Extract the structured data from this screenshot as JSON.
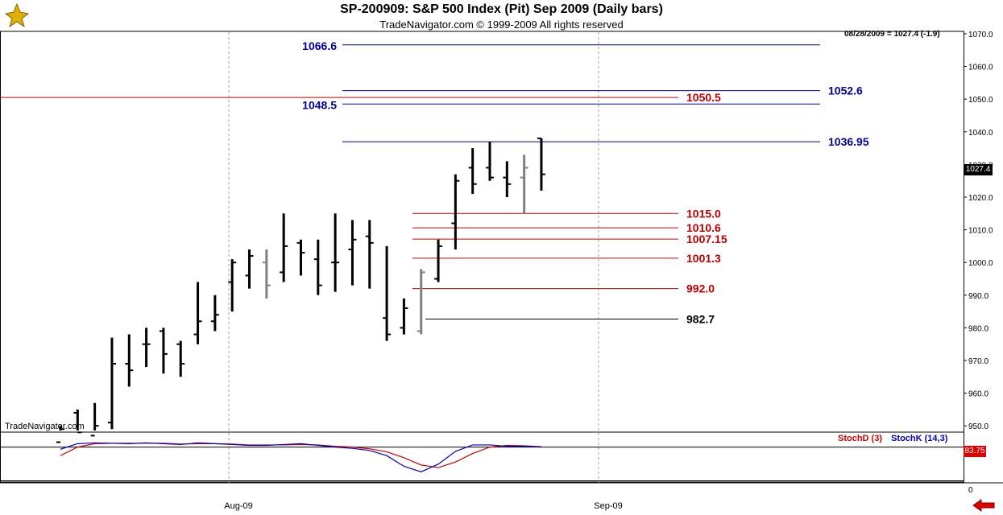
{
  "header": {
    "title": "SP-200909:  S&P 500 Index (Pit) Sep 2009  (Daily bars)",
    "subtitle": "TradeNavigator.com © 1999-2009 All rights reserved",
    "readout": "08/28/2009 = 1027.4 (-1.9)",
    "watermark": "TradeNavigator.com"
  },
  "colors": {
    "up_bar": "#00dd00",
    "normal_bar": "#000000",
    "gray_bar": "#808080",
    "blue_level": "#0000a0",
    "red_level": "#c00000",
    "stoch_d": "#d00000",
    "stoch_k": "#0000c0"
  },
  "chart_data": {
    "type": "bar",
    "title": "SP-200909:  S&P 500 Index (Pit) Sep 2009  (Daily bars)",
    "ylim": [
      945,
      1072
    ],
    "yticks": [
      "1070.0",
      "1060.0",
      "1050.0",
      "1040.0",
      "1030.0",
      "1020.0",
      "1010.0",
      "1000.0",
      "990.0",
      "980.0",
      "970.0",
      "960.0",
      "950.0"
    ],
    "xticks": [
      "Aug-09",
      "Sep-09"
    ],
    "last_price": "1027.4",
    "ohlc": [
      {
        "h": 950,
        "l": 944,
        "o": 945,
        "c": 949,
        "col": "n"
      },
      {
        "h": 955,
        "l": 944,
        "o": 954,
        "c": 948,
        "col": "n"
      },
      {
        "h": 957,
        "l": 946,
        "o": 947,
        "c": 950,
        "col": "n"
      },
      {
        "h": 977,
        "l": 949,
        "o": 951,
        "c": 969,
        "col": "n"
      },
      {
        "h": 978,
        "l": 962,
        "o": 969,
        "c": 967,
        "col": "n"
      },
      {
        "h": 980,
        "l": 968,
        "o": 975,
        "c": 975,
        "col": "n"
      },
      {
        "h": 980,
        "l": 966,
        "o": 979,
        "c": 972,
        "col": "n"
      },
      {
        "h": 976,
        "l": 965,
        "o": 975,
        "c": 969,
        "col": "n"
      },
      {
        "h": 994,
        "l": 975,
        "o": 978,
        "c": 982,
        "col": "n"
      },
      {
        "h": 990,
        "l": 979,
        "o": 982,
        "c": 984,
        "col": "n"
      },
      {
        "h": 1001,
        "l": 985,
        "o": 994,
        "c": 1000,
        "col": "n"
      },
      {
        "h": 1004,
        "l": 992,
        "o": 996,
        "c": 1002,
        "col": "n"
      },
      {
        "h": 1004,
        "l": 989,
        "o": 1000,
        "c": 993,
        "col": "g"
      },
      {
        "h": 1015,
        "l": 994,
        "o": 997,
        "c": 1005,
        "col": "n"
      },
      {
        "h": 1007,
        "l": 996,
        "o": 1006,
        "c": 1003,
        "col": "n"
      },
      {
        "h": 1007,
        "l": 990,
        "o": 1001,
        "c": 993,
        "col": "n"
      },
      {
        "h": 1015,
        "l": 991,
        "o": 1000,
        "c": 1000,
        "col": "n"
      },
      {
        "h": 1013,
        "l": 993,
        "o": 1004,
        "c": 1007,
        "col": "n"
      },
      {
        "h": 1013,
        "l": 992,
        "o": 1008,
        "c": 1006,
        "col": "n"
      },
      {
        "h": 1005,
        "l": 976,
        "o": 983,
        "c": 978,
        "col": "n"
      },
      {
        "h": 989,
        "l": 978,
        "o": 980,
        "c": 986,
        "col": "n"
      },
      {
        "h": 998,
        "l": 978,
        "o": 979,
        "c": 997,
        "col": "g"
      },
      {
        "h": 1007,
        "l": 994,
        "o": 995,
        "c": 1005,
        "col": "n"
      },
      {
        "h": 1027,
        "l": 1004,
        "o": 1012,
        "c": 1025,
        "col": "n"
      },
      {
        "h": 1035,
        "l": 1021,
        "o": 1029,
        "c": 1024,
        "col": "n"
      },
      {
        "h": 1037,
        "l": 1025,
        "o": 1029,
        "c": 1026,
        "col": "n"
      },
      {
        "h": 1031,
        "l": 1020,
        "o": 1026,
        "c": 1024,
        "col": "n"
      },
      {
        "h": 1033,
        "l": 1015,
        "o": 1026,
        "c": 1029,
        "col": "g"
      },
      {
        "h": 1038,
        "l": 1022,
        "o": 1038,
        "c": 1027,
        "col": "n"
      }
    ],
    "levels": [
      {
        "value": 1066.6,
        "label": "1066.6",
        "color": "blue",
        "side": "left",
        "span": "right"
      },
      {
        "value": 1052.6,
        "label": "1052.6",
        "color": "blue",
        "side": "right",
        "span": "right"
      },
      {
        "value": 1050.5,
        "label": "1050.5",
        "color": "red",
        "side": "mid",
        "span": "full"
      },
      {
        "value": 1048.5,
        "label": "1048.5",
        "color": "blue",
        "side": "left",
        "span": "right"
      },
      {
        "value": 1036.95,
        "label": "1036.95",
        "color": "blue",
        "side": "right",
        "span": "right"
      },
      {
        "value": 1015.0,
        "label": "1015.0",
        "color": "red",
        "side": "mid",
        "span": "mid"
      },
      {
        "value": 1010.6,
        "label": "1010.6",
        "color": "red",
        "side": "mid",
        "span": "mid"
      },
      {
        "value": 1007.15,
        "label": "1007.15",
        "color": "red",
        "side": "mid",
        "span": "mid"
      },
      {
        "value": 1001.3,
        "label": "1001.3",
        "color": "red",
        "side": "mid",
        "span": "mid"
      },
      {
        "value": 992.0,
        "label": "992.0",
        "color": "red",
        "side": "mid",
        "span": "mid"
      },
      {
        "value": 982.7,
        "label": "982.7",
        "color": "black",
        "side": "mid",
        "span": "mid"
      }
    ],
    "stochastic": {
      "legend_d": "StochD (3)",
      "legend_k": "StochK (14,3)",
      "value": "83.75",
      "yticks": [
        "0"
      ],
      "k": [
        75,
        88,
        90,
        89,
        88,
        90,
        88,
        86,
        90,
        88,
        86,
        84,
        84,
        86,
        88,
        84,
        80,
        77,
        72,
        60,
        35,
        22,
        40,
        70,
        85,
        85,
        82,
        82,
        80
      ],
      "d": [
        60,
        80,
        88,
        89,
        89,
        89,
        89,
        87,
        88,
        88,
        87,
        85,
        85,
        85,
        86,
        85,
        82,
        80,
        76,
        69,
        55,
        38,
        32,
        45,
        65,
        80,
        84,
        83,
        81
      ]
    }
  }
}
